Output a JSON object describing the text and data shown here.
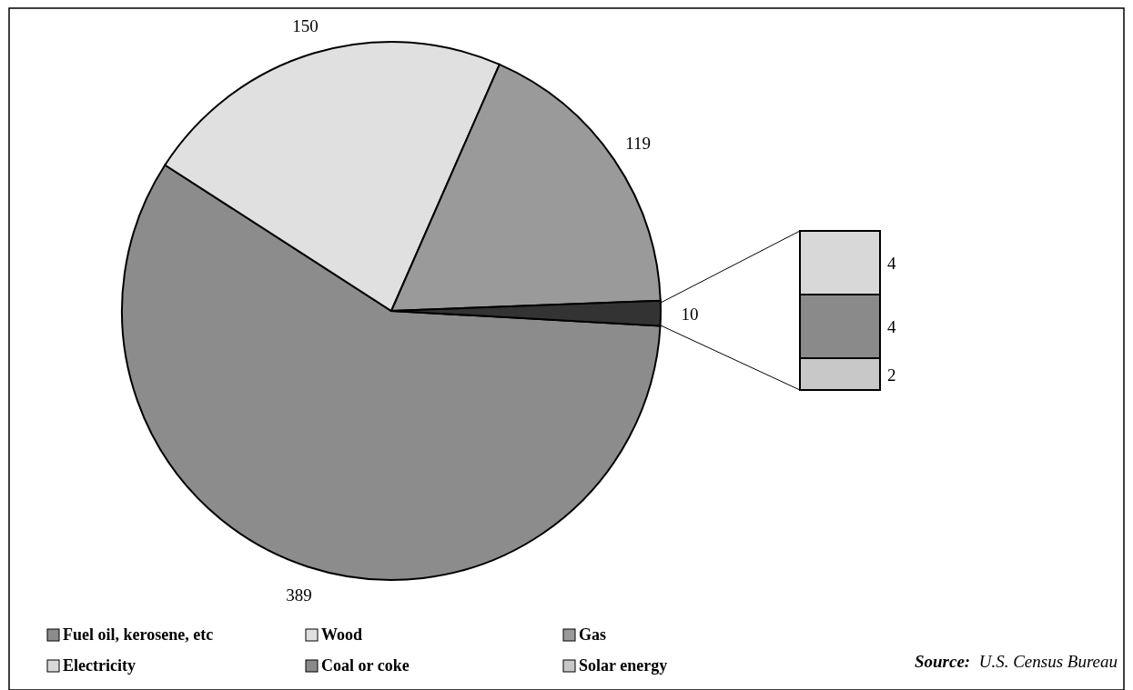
{
  "chart_data": [
    {
      "type": "pie",
      "categories": [
        "Fuel oil, kerosene, etc",
        "Wood",
        "Gas",
        null
      ],
      "values": [
        389,
        150,
        119,
        10
      ],
      "colors": [
        "#8c8c8c",
        "#e0e0e0",
        "#9a9a9a",
        "#333333"
      ],
      "data_labels": true,
      "legend": "bottom",
      "annotations": [
        "Source: U.S. Census Bureau"
      ]
    },
    {
      "type": "bar",
      "stacked": true,
      "categories": [
        null
      ],
      "series": [
        {
          "name": "Solar energy",
          "color": "#c8c8c8",
          "values": [
            2
          ]
        },
        {
          "name": "Coal or coke",
          "color": "#8a8a8a",
          "values": [
            4
          ]
        },
        {
          "name": "Electricity",
          "color": "#d8d8d8",
          "values": [
            4
          ]
        }
      ],
      "data_labels": true,
      "legend": "bottom"
    }
  ]
}
